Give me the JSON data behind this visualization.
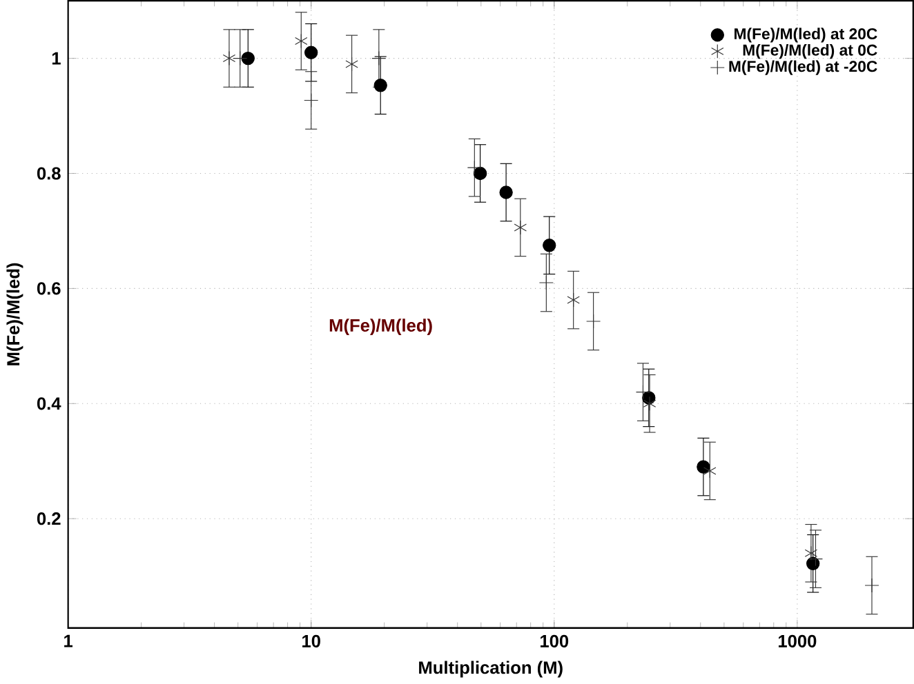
{
  "chart_data": {
    "type": "scatter",
    "xlabel": "Multiplication (M)",
    "ylabel": "M(Fe)/M(led)",
    "log": "x",
    "grid": true,
    "legend": "top right",
    "xlim": [
      1,
      3000
    ],
    "ylim": [
      0.01,
      1.1
    ],
    "xticks": [
      1,
      10,
      100,
      1000
    ],
    "yticks": [
      0.2,
      0.4,
      0.6,
      0.8,
      1
    ],
    "annotations": [
      "M(Fe)/M(led)"
    ],
    "series": [
      {
        "name": "M(Fe)/M(led) at 20C",
        "color": "#000000",
        "marker": "circle",
        "x": [
          5.5,
          10,
          19.3,
          49.6,
          63.4,
          95.5,
          245,
          411,
          1161
        ],
        "values": [
          1.0,
          1.01,
          0.953,
          0.8,
          0.767,
          0.675,
          0.41,
          0.29,
          0.122
        ],
        "errors": [
          0.05,
          0.05,
          0.05,
          0.05,
          0.05,
          0.05,
          0.05,
          0.05,
          0.05
        ]
      },
      {
        "name": "M(Fe)/M(led) at 0C",
        "color": "#333333",
        "marker": "cross",
        "x": [
          4.6,
          9.1,
          14.7,
          72.6,
          120,
          247,
          437,
          1140
        ],
        "values": [
          1.0,
          1.03,
          0.99,
          0.706,
          0.58,
          0.4,
          0.283,
          0.14
        ],
        "errors": [
          0.05,
          0.05,
          0.05,
          0.05,
          0.05,
          0.05,
          0.05,
          0.05
        ]
      },
      {
        "name": "M(Fe)/M(led) at -20C",
        "color": "#333333",
        "marker": "cross",
        "x": [
          5.1,
          10,
          19,
          47,
          92.8,
          145,
          232,
          1190,
          2028
        ],
        "values": [
          1.0,
          0.927,
          1.0,
          0.81,
          0.61,
          0.543,
          0.42,
          0.13,
          0.084
        ],
        "errors": [
          0.05,
          0.05,
          0.05,
          0.05,
          0.05,
          0.05,
          0.05,
          0.05,
          0.05
        ]
      }
    ]
  }
}
